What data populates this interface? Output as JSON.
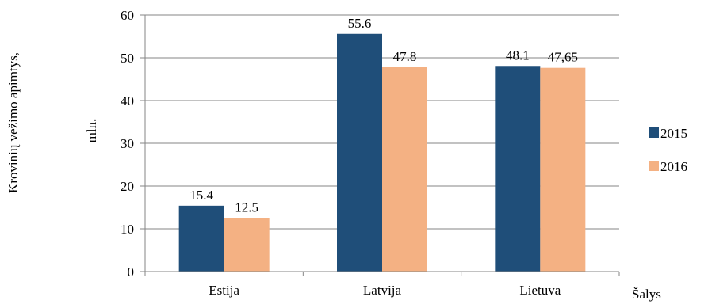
{
  "chart_data": {
    "type": "bar",
    "categories": [
      "Estija",
      "Latvija",
      "Lietuva"
    ],
    "series": [
      {
        "name": "2015",
        "values": [
          15.4,
          55.6,
          48.1
        ],
        "labels": [
          "15.4",
          "55.6",
          "48.1"
        ],
        "color": "#1f4e79"
      },
      {
        "name": "2016",
        "values": [
          12.5,
          47.8,
          47.65
        ],
        "labels": [
          "12.5",
          "47.8",
          "47,65"
        ],
        "color": "#f4b183"
      }
    ],
    "ylabel_line1": "Krovinių vežimo apimtys,",
    "ylabel_line2": "mln.",
    "xlabel": "Šalys",
    "ylim": [
      0,
      60
    ],
    "yticks": [
      "0",
      "10",
      "20",
      "30",
      "40",
      "50",
      "60"
    ],
    "grid": true,
    "legend_position": "right"
  }
}
